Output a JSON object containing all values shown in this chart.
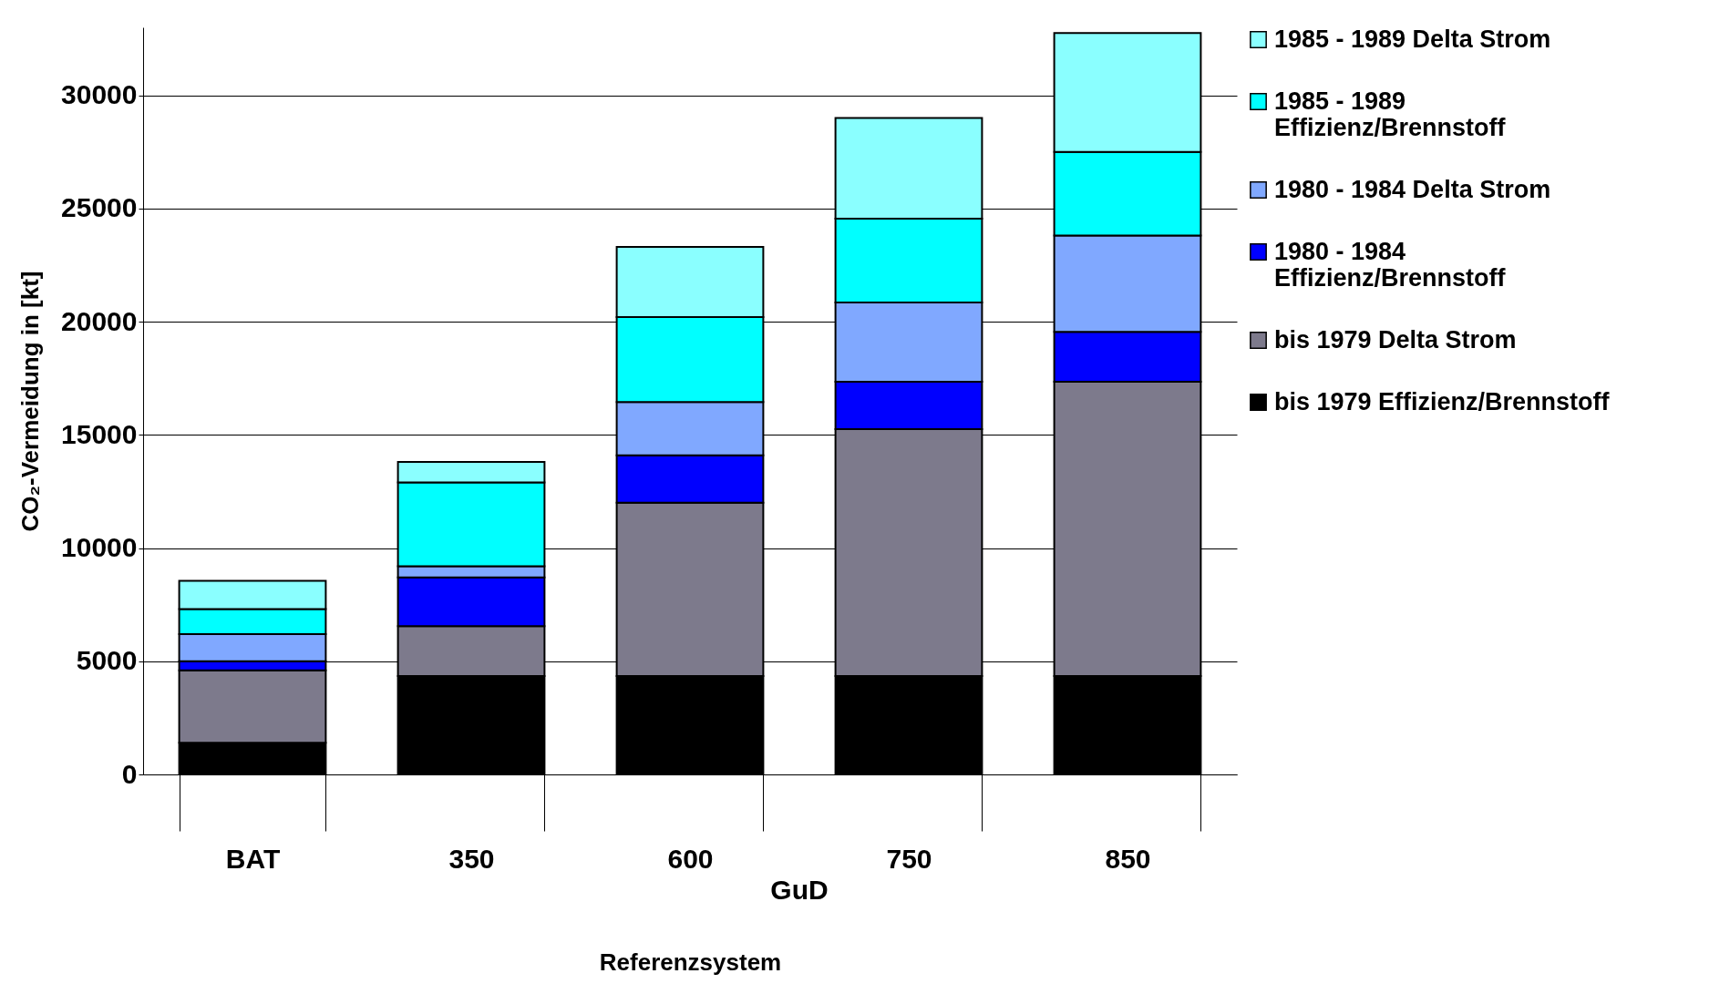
{
  "chart_data": {
    "type": "bar",
    "stacked": true,
    "xlabel": "Referenzsystem",
    "ylabel": "CO₂-Vermeidung in [kt]",
    "categories": [
      "BAT",
      "350",
      "600",
      "750",
      "850"
    ],
    "annotations": [
      "GuD"
    ],
    "ylim": [
      0,
      33000
    ],
    "yticks": [
      0,
      5000,
      10000,
      15000,
      20000,
      25000,
      30000
    ],
    "grid": "y",
    "legend": "right",
    "series": [
      {
        "name": "bis 1979 Effizienz/Brennstoff",
        "color": "#000000",
        "values": [
          1400,
          4350,
          4350,
          4350,
          4350
        ]
      },
      {
        "name": "bis 1979 Delta Strom",
        "color": "#7d7a8c",
        "values": [
          3200,
          2200,
          7650,
          10900,
          13000
        ]
      },
      {
        "name": "1980 - 1984 Effizienz/Brennstoff",
        "color": "#0000ff",
        "values": [
          400,
          2150,
          2100,
          2100,
          2200
        ]
      },
      {
        "name": "1980 - 1984 Delta Strom",
        "color": "#80a8ff",
        "values": [
          1200,
          500,
          2350,
          3500,
          4250
        ]
      },
      {
        "name": "1985 - 1989 Effizienz/Brennstoff",
        "color": "#00ffff",
        "values": [
          1100,
          3700,
          3750,
          3700,
          3700
        ]
      },
      {
        "name": "1985 - 1989 Delta Strom",
        "color": "#8affff",
        "values": [
          1250,
          900,
          3100,
          4450,
          5250
        ]
      }
    ]
  }
}
